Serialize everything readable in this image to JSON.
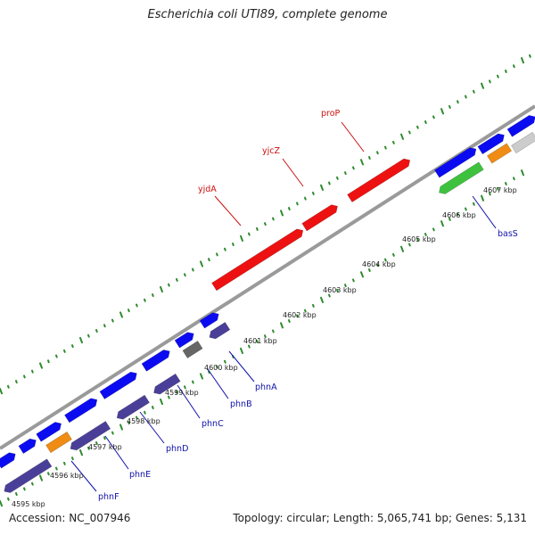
{
  "header": {
    "title": "Escherichia coli UTI89, complete genome"
  },
  "footer": {
    "accession": "Accession: NC_007946",
    "summary": "Topology: circular; Length: 5,065,741 bp; Genes: 5,131"
  },
  "colors": {
    "backbone": "#7a7a7a",
    "forward_gene": "#0b0bf2",
    "reverse_gene": "#4a3f98",
    "highlight_gene": "#ee1111",
    "rna_gene": "#f08c14",
    "pseudo_gene": "#666666",
    "other_gene": "#3ec23e",
    "tick_outer": "#2e8b2e",
    "tick_inner": "#2e8b2e",
    "label_red": "#cc1111",
    "label_blue": "#1111aa"
  },
  "map": {
    "tick_labels": [
      "4595 kbp",
      "4596 kbp",
      "4597 kbp",
      "4598 kbp",
      "4599 kbp",
      "4600 kbp",
      "4601 kbp",
      "4602 kbp",
      "4603 kbp",
      "4604 kbp",
      "4605 kbp",
      "4606 kbp",
      "4607 kbp"
    ],
    "gene_labels_top": [
      "yjdA",
      "yjcZ",
      "proP"
    ],
    "gene_labels_bottom": [
      "phnF",
      "phnE",
      "phnD",
      "phnC",
      "phnB",
      "phnA",
      "basS"
    ]
  }
}
